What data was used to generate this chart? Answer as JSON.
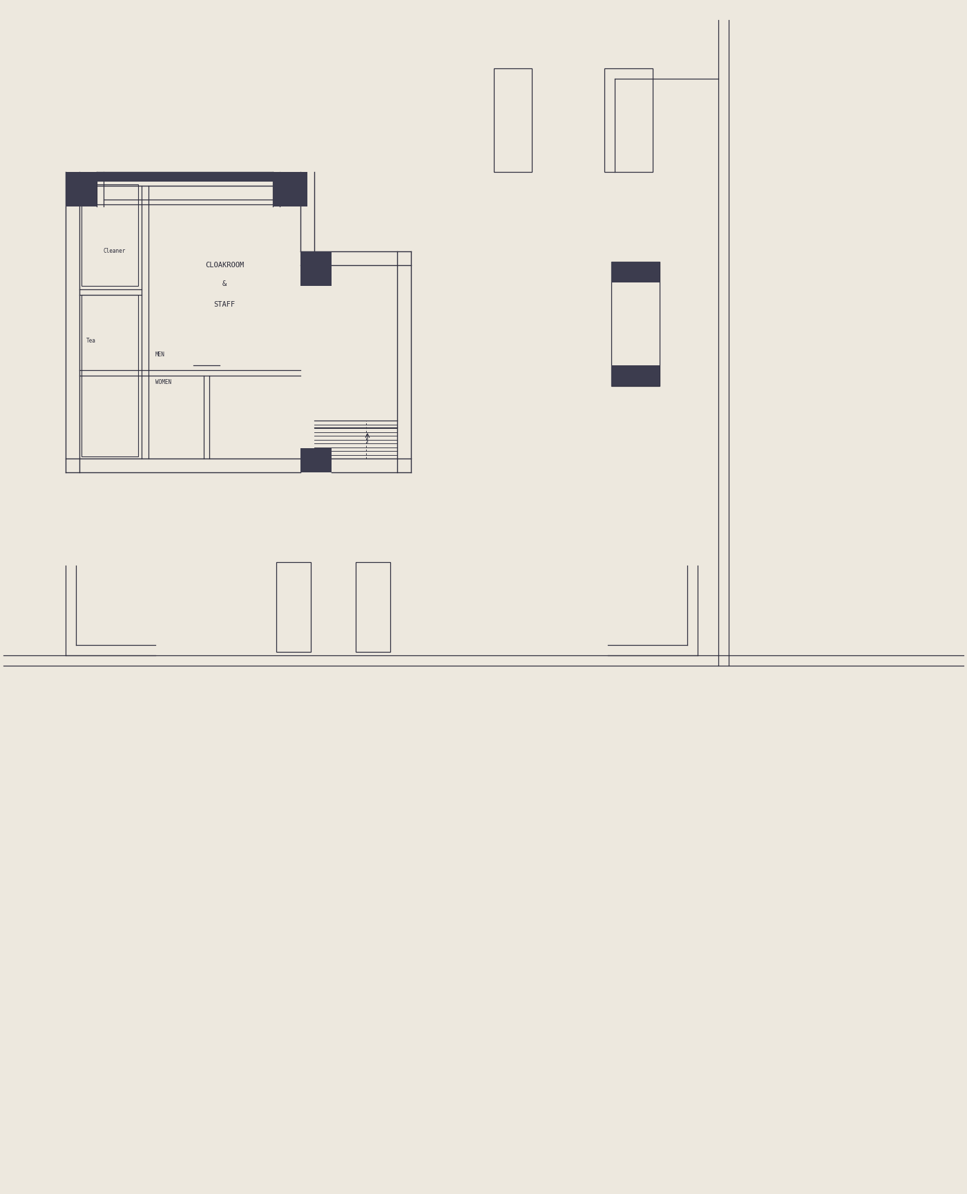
{
  "bg_color": "#ede8de",
  "line_color": "#2e2e3e",
  "fill_color": "#3c3c4e",
  "figsize": [
    14.0,
    17.29
  ],
  "dpi": 100,
  "font_family": "DejaVu Sans Mono",
  "label_color": "#2a2a38",
  "labels": {
    "cloakroom1": "CLOAKROOM",
    "cloakroom2": "&",
    "cloakroom3": "STAFF",
    "cleaner": "Cleaner",
    "tea": "Tea",
    "men": "MEN",
    "women": "WOMEN"
  }
}
